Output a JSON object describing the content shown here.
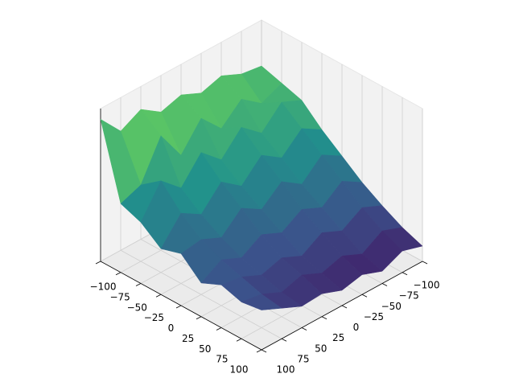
{
  "chart_data": {
    "type": "surface",
    "colormap": "viridis",
    "x": [
      -100,
      -75,
      -50,
      -25,
      0,
      25,
      50,
      75,
      100
    ],
    "y": [
      -100,
      -75,
      -50,
      -25,
      0,
      25,
      50,
      75,
      100
    ],
    "z": [
      [
        0.7,
        0.72,
        0.78,
        0.74,
        0.8,
        0.76,
        0.85,
        0.78,
        0.93
      ],
      [
        0.66,
        0.6,
        0.7,
        0.58,
        0.72,
        0.55,
        0.75,
        0.5,
        0.45
      ],
      [
        0.62,
        0.68,
        0.55,
        0.66,
        0.52,
        0.64,
        0.48,
        0.6,
        0.4
      ],
      [
        0.5,
        0.58,
        0.46,
        0.55,
        0.42,
        0.52,
        0.38,
        0.46,
        0.3
      ],
      [
        0.4,
        0.48,
        0.36,
        0.45,
        0.34,
        0.42,
        0.3,
        0.36,
        0.34
      ],
      [
        0.3,
        0.38,
        0.28,
        0.34,
        0.26,
        0.32,
        0.24,
        0.3,
        0.22
      ],
      [
        0.22,
        0.28,
        0.2,
        0.26,
        0.18,
        0.24,
        0.2,
        0.26,
        0.28
      ],
      [
        0.15,
        0.2,
        0.12,
        0.18,
        0.14,
        0.2,
        0.16,
        0.22,
        0.24
      ],
      [
        0.1,
        0.14,
        0.08,
        0.13,
        0.1,
        0.15,
        0.14,
        0.2,
        0.26
      ]
    ],
    "xlim": [
      -100,
      100
    ],
    "ylim": [
      -100,
      100
    ],
    "zlim": [
      0,
      1
    ],
    "xticks": [
      {
        "value": -100,
        "label": "−100"
      },
      {
        "value": -75,
        "label": "−75"
      },
      {
        "value": -50,
        "label": "−50"
      },
      {
        "value": -25,
        "label": "−25"
      },
      0,
      25,
      50,
      75,
      100
    ],
    "yticks": [
      {
        "value": -100,
        "label": "−100"
      },
      {
        "value": -75,
        "label": "−75"
      },
      {
        "value": -50,
        "label": "−50"
      },
      {
        "value": -25,
        "label": "−25"
      },
      0,
      25,
      50,
      75,
      100
    ],
    "grid": true
  }
}
